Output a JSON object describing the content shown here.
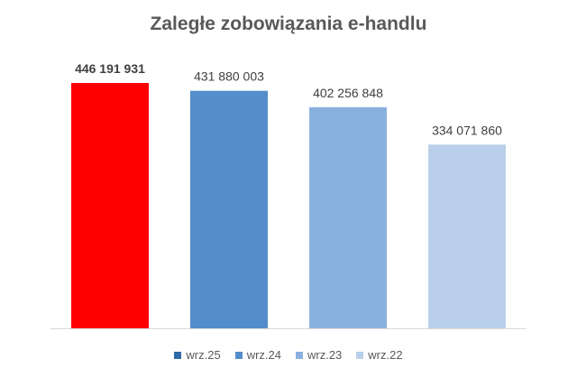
{
  "chart_data": {
    "type": "bar",
    "title": "Zaległe zobowiązania e-handlu",
    "categories": [
      "wrz.25",
      "wrz.24",
      "wrz.23",
      "wrz.22"
    ],
    "values": [
      446191931,
      431880003,
      402256848,
      334071860
    ],
    "data_labels": [
      "446 191 931",
      "431 880 003",
      "402 256 848",
      "334 071 860"
    ],
    "bar_colors": [
      "#ff0000",
      "#548dcb",
      "#89b1df",
      "#bad0ea"
    ],
    "legend": {
      "placement": "bottom",
      "entries": [
        "wrz.25",
        "wrz.24",
        "wrz.23",
        "wrz.22"
      ],
      "colors": [
        "#2f6aa8",
        "#548dcb",
        "#89b1df",
        "#bad0ea"
      ]
    },
    "ylim": [
      0,
      500000000
    ],
    "xlabel": "",
    "ylabel": "",
    "grid": false,
    "axis_line_color": "#d9d9d9"
  }
}
